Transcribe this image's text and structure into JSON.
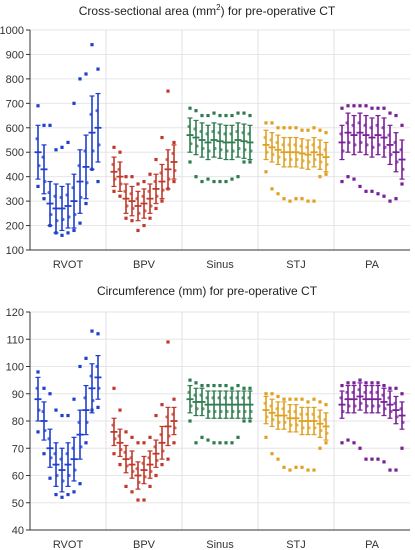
{
  "chart_data": [
    {
      "type": "scatter",
      "title": "Cross-sectional area (mm²) for pre-operative CT",
      "title_main": "Cross-sectional area (mm",
      "title_sup": "2",
      "title_rest": ") for pre-operative CT",
      "categories": [
        "RVOT",
        "BPV",
        "Sinus",
        "STJ",
        "PA"
      ],
      "colors": [
        "#1f3fcf",
        "#c0392b",
        "#2e7d4f",
        "#e0a020",
        "#7a1f9a"
      ],
      "ylim": [
        100,
        1000
      ],
      "yticks": [
        100,
        200,
        300,
        400,
        500,
        600,
        700,
        800,
        900,
        1000
      ],
      "grid": true,
      "series": [
        {
          "name": "RVOT",
          "means": [
            500,
            430,
            290,
            270,
            270,
            280,
            300,
            380,
            440,
            580,
            600
          ],
          "sds": [
            110,
            100,
            90,
            100,
            90,
            90,
            110,
            130,
            130,
            150,
            140
          ],
          "max": [
            690,
            610,
            610,
            510,
            520,
            540,
            700,
            800,
            820,
            940,
            840
          ],
          "min": [
            360,
            310,
            200,
            170,
            160,
            170,
            180,
            210,
            290,
            430,
            380
          ]
        },
        {
          "name": "BPV",
          "means": [
            420,
            400,
            310,
            300,
            280,
            290,
            310,
            350,
            380,
            430,
            460
          ],
          "sds": [
            60,
            60,
            60,
            60,
            60,
            60,
            60,
            60,
            70,
            80,
            70
          ],
          "max": [
            520,
            500,
            400,
            400,
            370,
            380,
            410,
            470,
            560,
            750,
            540
          ],
          "min": [
            340,
            320,
            230,
            220,
            180,
            200,
            230,
            270,
            300,
            350,
            380
          ]
        },
        {
          "name": "Sinus",
          "means": [
            570,
            560,
            550,
            540,
            550,
            545,
            540,
            540,
            550,
            545,
            540
          ],
          "sds": [
            70,
            70,
            70,
            70,
            70,
            70,
            70,
            70,
            70,
            70,
            70
          ],
          "max": [
            680,
            670,
            650,
            650,
            660,
            650,
            650,
            650,
            660,
            660,
            650
          ],
          "min": [
            460,
            400,
            380,
            390,
            380,
            380,
            380,
            390,
            400,
            460,
            460
          ]
        },
        {
          "name": "STJ",
          "means": [
            530,
            520,
            510,
            500,
            500,
            500,
            495,
            490,
            500,
            490,
            480
          ],
          "sds": [
            60,
            60,
            60,
            60,
            60,
            60,
            60,
            60,
            60,
            60,
            60
          ],
          "max": [
            620,
            620,
            600,
            600,
            600,
            600,
            590,
            590,
            600,
            590,
            580
          ],
          "min": [
            420,
            350,
            330,
            310,
            300,
            310,
            310,
            300,
            300,
            400,
            410
          ]
        },
        {
          "name": "PA",
          "means": [
            540,
            580,
            570,
            580,
            570,
            560,
            570,
            560,
            530,
            500,
            470
          ],
          "sds": [
            70,
            80,
            80,
            80,
            80,
            80,
            80,
            80,
            80,
            80,
            80
          ],
          "max": [
            680,
            690,
            690,
            690,
            690,
            680,
            680,
            680,
            660,
            650,
            610
          ],
          "min": [
            380,
            400,
            390,
            360,
            340,
            340,
            330,
            320,
            300,
            310,
            370
          ]
        }
      ]
    },
    {
      "type": "scatter",
      "title": "Circumference (mm) for pre-operative CT",
      "title_main": "Circumference (mm) for pre-operative CT",
      "title_sup": "",
      "title_rest": "",
      "categories": [
        "RVOT",
        "BPV",
        "Sinus",
        "STJ",
        "PA"
      ],
      "colors": [
        "#1f3fcf",
        "#c0392b",
        "#2e7d4f",
        "#e0a020",
        "#7a1f9a"
      ],
      "ylim": [
        40,
        120
      ],
      "yticks": [
        40,
        50,
        60,
        70,
        80,
        90,
        100,
        110,
        120
      ],
      "grid": true,
      "series": [
        {
          "name": "RVOT",
          "means": [
            88,
            80,
            70,
            64,
            62,
            64,
            66,
            75,
            84,
            92,
            96
          ],
          "sds": [
            8,
            7,
            7,
            8,
            8,
            8,
            8,
            9,
            9,
            9,
            8
          ],
          "max": [
            98,
            92,
            90,
            84,
            82,
            82,
            88,
            100,
            103,
            113,
            112
          ],
          "min": [
            76,
            68,
            59,
            53,
            52,
            53,
            54,
            57,
            72,
            84,
            85
          ]
        },
        {
          "name": "BPV",
          "means": [
            76,
            72,
            66,
            64,
            60,
            62,
            64,
            68,
            72,
            78,
            80
          ],
          "sds": [
            5,
            5,
            5,
            5,
            5,
            5,
            5,
            5,
            6,
            7,
            5
          ],
          "max": [
            92,
            84,
            76,
            74,
            72,
            72,
            74,
            82,
            86,
            109,
            88
          ],
          "min": [
            68,
            64,
            56,
            54,
            51,
            51,
            56,
            60,
            64,
            66,
            72
          ]
        },
        {
          "name": "Sinus",
          "means": [
            88,
            87,
            87,
            86,
            86,
            86,
            86,
            86,
            86,
            86,
            86
          ],
          "sds": [
            5,
            5,
            5,
            5,
            5,
            5,
            5,
            5,
            5,
            5,
            5
          ],
          "max": [
            95,
            94,
            93,
            93,
            93,
            93,
            93,
            92,
            93,
            92,
            92
          ],
          "min": [
            80,
            72,
            74,
            73,
            72,
            72,
            72,
            72,
            74,
            80,
            80
          ]
        },
        {
          "name": "STJ",
          "means": [
            84,
            83,
            82,
            82,
            81,
            81,
            80,
            80,
            80,
            79,
            78
          ],
          "sds": [
            5,
            5,
            5,
            5,
            5,
            5,
            5,
            5,
            5,
            5,
            5
          ],
          "max": [
            90,
            90,
            89,
            88,
            88,
            88,
            88,
            87,
            88,
            87,
            86
          ],
          "min": [
            74,
            68,
            66,
            63,
            62,
            63,
            63,
            62,
            62,
            70,
            72
          ]
        },
        {
          "name": "PA",
          "means": [
            86,
            88,
            88,
            89,
            88,
            88,
            88,
            87,
            86,
            84,
            82
          ],
          "sds": [
            5,
            5,
            5,
            5,
            5,
            5,
            5,
            5,
            5,
            5,
            5
          ],
          "max": [
            93,
            94,
            94,
            95,
            94,
            94,
            94,
            93,
            92,
            92,
            90
          ],
          "min": [
            72,
            73,
            72,
            70,
            66,
            66,
            66,
            65,
            62,
            62,
            70
          ]
        }
      ]
    }
  ]
}
